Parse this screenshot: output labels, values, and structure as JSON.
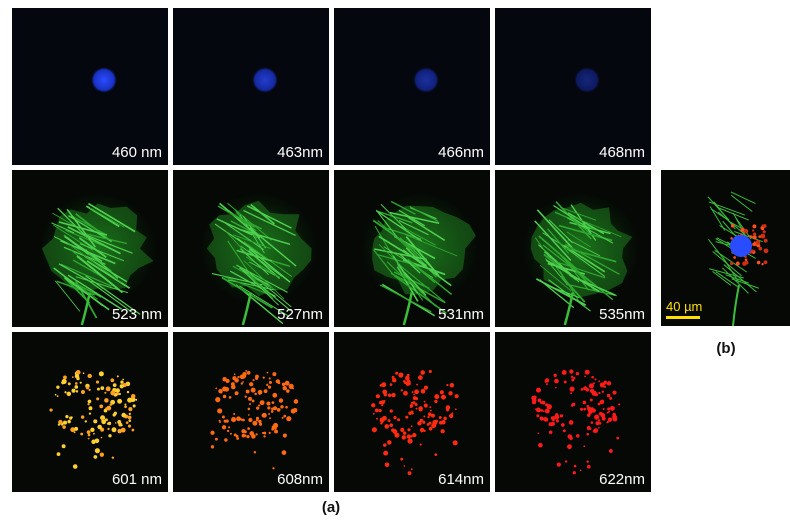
{
  "panel_a": {
    "label": "(a)",
    "rows": [
      [
        "460 nm",
        "463nm",
        "466nm",
        "468nm"
      ],
      [
        "523 nm",
        "527nm",
        "531nm",
        "535nm"
      ],
      [
        "601 nm",
        "608nm",
        "614nm",
        "622nm"
      ]
    ]
  },
  "panel_b": {
    "label": "(b)",
    "scale_bar": "40 µm"
  }
}
